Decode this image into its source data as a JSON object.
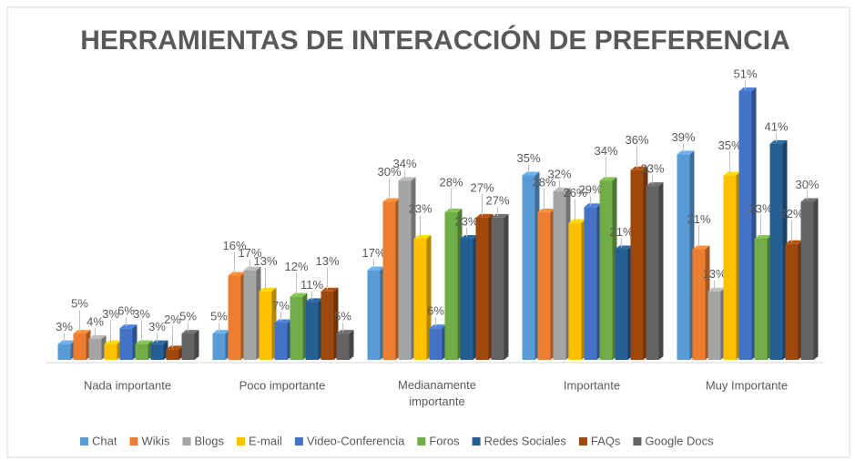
{
  "chart_data": {
    "type": "bar",
    "title": "HERRAMIENTAS DE INTERACCIÓN  DE PREFERENCIA",
    "categories": [
      "Nada importante",
      "Poco importante",
      "Medianamente importante",
      "Importante",
      "Muy Importante"
    ],
    "series": [
      {
        "name": "Chat",
        "color": "#5b9bd5",
        "values": [
          3,
          5,
          17,
          35,
          39
        ],
        "value_labels": [
          "3%",
          "5%",
          "17%",
          "35%",
          "39%"
        ]
      },
      {
        "name": "Wikis",
        "color": "#ed7d31",
        "values": [
          5,
          16,
          30,
          28,
          21
        ],
        "value_labels": [
          "5%",
          "16%",
          "30%",
          "28%",
          "21%"
        ]
      },
      {
        "name": "Blogs",
        "color": "#a5a5a5",
        "values": [
          4,
          17,
          34,
          32,
          13
        ],
        "value_labels": [
          "4%",
          "17%",
          "34%",
          "32%",
          "13%"
        ]
      },
      {
        "name": "E-mail",
        "color": "#ffc000",
        "values": [
          3,
          13,
          23,
          26,
          35
        ],
        "value_labels": [
          "3%",
          "13%",
          "23%",
          "26%",
          "35%"
        ]
      },
      {
        "name": "Video-Conferencia",
        "color": "#4472c4",
        "values": [
          6,
          7,
          6,
          29,
          51
        ],
        "value_labels": [
          "6%",
          "7%",
          "6%",
          "29%",
          "51%"
        ]
      },
      {
        "name": "Foros",
        "color": "#70ad47",
        "values": [
          3,
          12,
          28,
          34,
          23
        ],
        "value_labels": [
          "3%",
          "12%",
          "28%",
          "34%",
          "23%"
        ]
      },
      {
        "name": "Redes Sociales",
        "color": "#255e91",
        "values": [
          3,
          11,
          23,
          21,
          41
        ],
        "value_labels": [
          "3%",
          "11%",
          "23%",
          "21%",
          "41%"
        ]
      },
      {
        "name": "FAQs",
        "color": "#9e480e",
        "values": [
          2,
          13,
          27,
          36,
          22
        ],
        "value_labels": [
          "2%",
          "13%",
          "27%",
          "36%",
          "22%"
        ]
      },
      {
        "name": "Google Docs",
        "color": "#636363",
        "values": [
          5,
          5,
          27,
          33,
          30
        ],
        "value_labels": [
          "5%",
          "5%",
          "27%",
          "33%",
          "30%"
        ]
      }
    ]
  }
}
